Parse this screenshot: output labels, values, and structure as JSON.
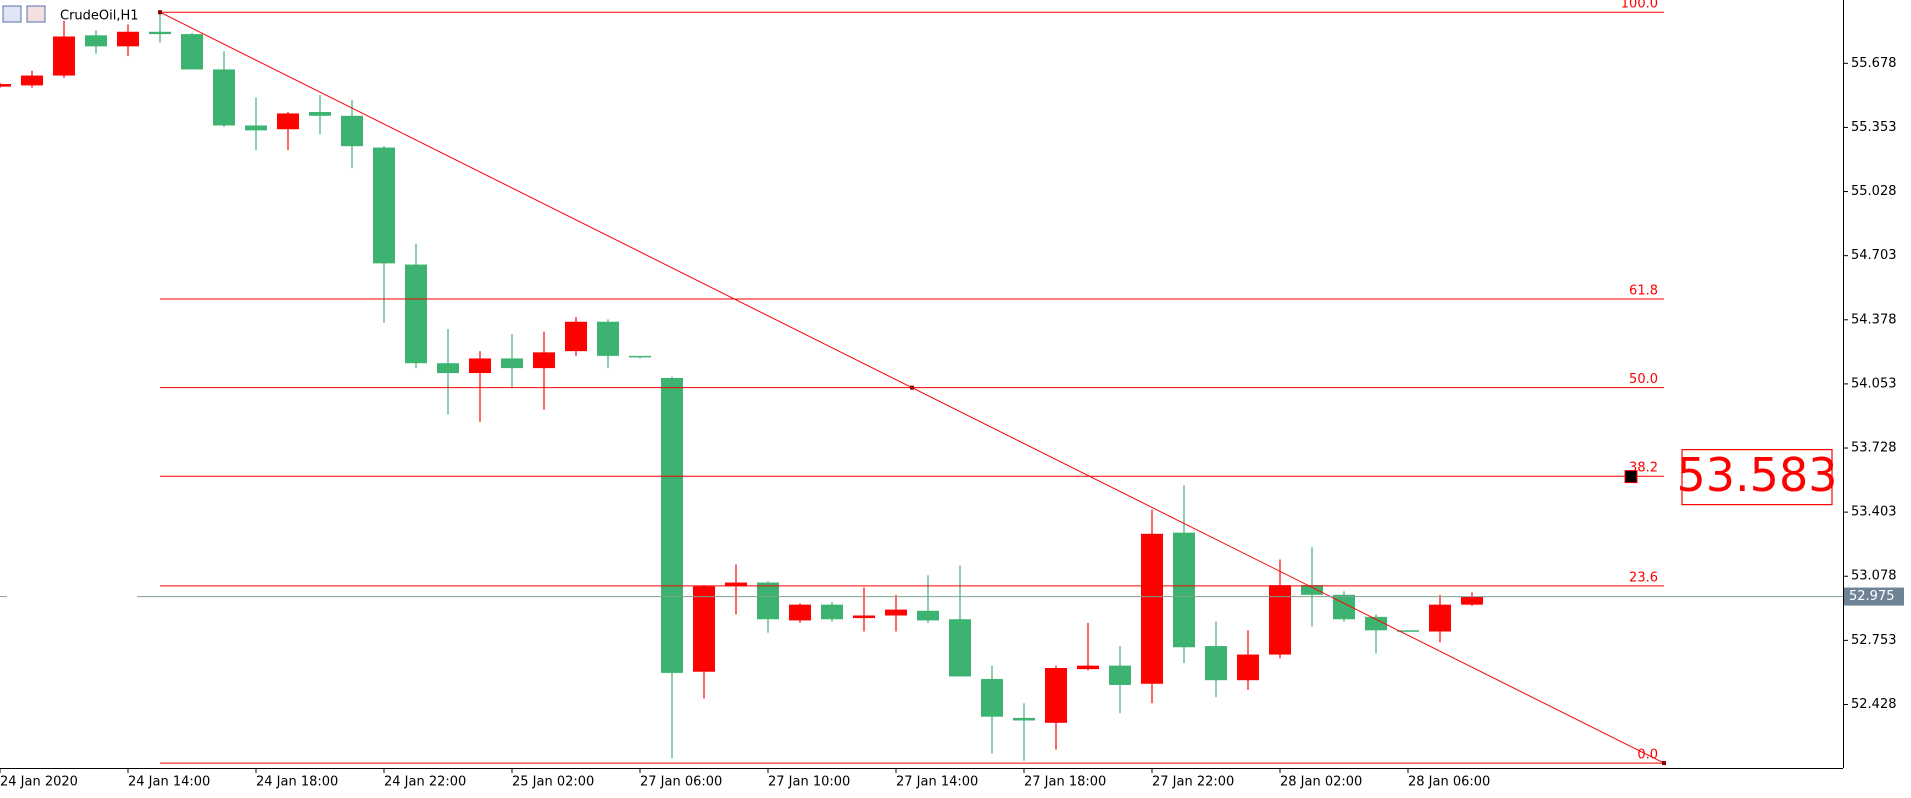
{
  "chart_data": {
    "type": "candlestick",
    "title": "CrudeOil,H1",
    "x": [
      "24 Jan 2020",
      null,
      null,
      null,
      "24 Jan 14:00",
      null,
      null,
      null,
      "24 Jan 18:00",
      null,
      null,
      null,
      "24 Jan 22:00",
      null,
      null,
      null,
      "25 Jan 02:00",
      null,
      null,
      null,
      "27 Jan 06:00",
      null,
      null,
      null,
      "27 Jan 10:00",
      null,
      null,
      null,
      "27 Jan 14:00",
      null,
      null,
      null,
      "27 Jan 18:00",
      null,
      null,
      null,
      "27 Jan 22:00",
      null,
      null,
      null,
      "28 Jan 02:00",
      null,
      null,
      null,
      "28 Jan 06:00",
      null,
      null
    ],
    "open": [
      55.56,
      55.566,
      55.616,
      55.82,
      55.764,
      55.838,
      55.826,
      55.647,
      55.363,
      55.344,
      55.431,
      55.412,
      55.251,
      54.658,
      54.158,
      54.108,
      54.182,
      54.133,
      54.219,
      54.368,
      54.195,
      54.083,
      52.594,
      53.027,
      53.046,
      52.854,
      52.934,
      52.866,
      52.879,
      52.903,
      52.86,
      52.557,
      52.36,
      52.335,
      52.607,
      52.625,
      52.533,
      53.299,
      52.724,
      52.551,
      52.681,
      53.033,
      52.984,
      52.872,
      52.804,
      52.798,
      52.934
    ],
    "high": [
      55.579,
      55.641,
      55.894,
      55.845,
      55.875,
      55.937,
      55.832,
      55.739,
      55.505,
      55.431,
      55.517,
      55.492,
      55.258,
      54.763,
      54.331,
      54.219,
      54.306,
      54.318,
      54.392,
      54.38,
      54.195,
      54.09,
      53.033,
      53.138,
      53.052,
      52.94,
      52.947,
      53.021,
      52.984,
      53.083,
      53.132,
      52.625,
      52.434,
      52.625,
      52.842,
      52.724,
      53.416,
      53.54,
      52.848,
      52.804,
      53.163,
      53.225,
      53.002,
      52.885,
      52.804,
      52.984,
      52.996
    ],
    "low": [
      55.554,
      55.554,
      55.604,
      55.727,
      55.715,
      55.783,
      55.647,
      55.356,
      55.239,
      55.239,
      55.319,
      55.146,
      54.362,
      54.133,
      53.898,
      53.861,
      54.034,
      53.923,
      54.195,
      54.133,
      54.182,
      52.156,
      52.458,
      52.885,
      52.792,
      52.842,
      52.848,
      52.798,
      52.798,
      52.842,
      52.57,
      52.18,
      52.143,
      52.199,
      52.601,
      52.384,
      52.434,
      52.638,
      52.465,
      52.502,
      52.662,
      52.823,
      52.848,
      52.687,
      52.798,
      52.743,
      52.928
    ],
    "close": [
      55.573,
      55.616,
      55.814,
      55.764,
      55.838,
      55.826,
      55.647,
      55.363,
      55.338,
      55.424,
      55.412,
      55.258,
      54.664,
      54.158,
      54.108,
      54.182,
      54.133,
      54.213,
      54.368,
      54.195,
      54.189,
      52.588,
      53.027,
      53.046,
      52.86,
      52.934,
      52.86,
      52.879,
      52.909,
      52.854,
      52.57,
      52.366,
      52.347,
      52.613,
      52.625,
      52.527,
      53.293,
      52.718,
      52.551,
      52.681,
      53.033,
      52.984,
      52.86,
      52.804,
      52.798,
      52.934,
      52.975
    ],
    "up_color": "#ff0000",
    "down_color": "#3cb371",
    "ylim": [
      52.106,
      55.999
    ],
    "yticks": [
      55.678,
      55.353,
      55.028,
      54.703,
      54.378,
      54.053,
      53.728,
      53.403,
      53.078,
      52.753,
      52.428
    ],
    "last_price": 52.975,
    "fib": {
      "x": [
        5,
        52
      ],
      "prices": [
        55.937,
        52.131
      ],
      "levels": [
        {
          "value": 100,
          "label": "100.0"
        },
        61.8,
        {
          "value": 50,
          "label": "50.0"
        },
        38.2,
        23.6,
        {
          "value": 0,
          "label": "0.0"
        }
      ],
      "color": "#ff0000"
    },
    "price_label": 53.583
  }
}
